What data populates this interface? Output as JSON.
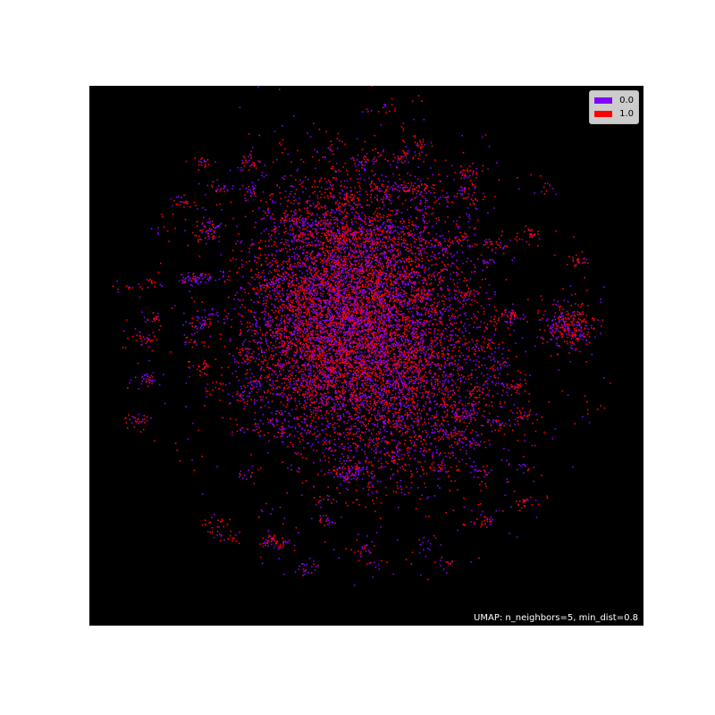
{
  "chart_data": {
    "type": "scatter",
    "title": "",
    "xlabel": "",
    "ylabel": "",
    "background": "#000000",
    "axes_visible": false,
    "grid": false,
    "legend_position": "top-right",
    "annotation": "UMAP: n_neighbors=5, min_dist=0.8",
    "series": [
      {
        "name": "0.0",
        "color": "#8000ff"
      },
      {
        "name": "1.0",
        "color": "#ff0000"
      }
    ],
    "clusters": [
      {
        "cx": -0.05,
        "cy": 0.25,
        "spread": 0.22,
        "weight": 0.45
      },
      {
        "cx": 0.1,
        "cy": -0.1,
        "spread": 0.22,
        "weight": 0.35
      },
      {
        "cx": -0.2,
        "cy": 0.0,
        "spread": 0.18,
        "weight": 0.2
      }
    ],
    "satellite_cluster": {
      "cx": 0.78,
      "cy": 0.08,
      "spread": 0.05
    }
  }
}
